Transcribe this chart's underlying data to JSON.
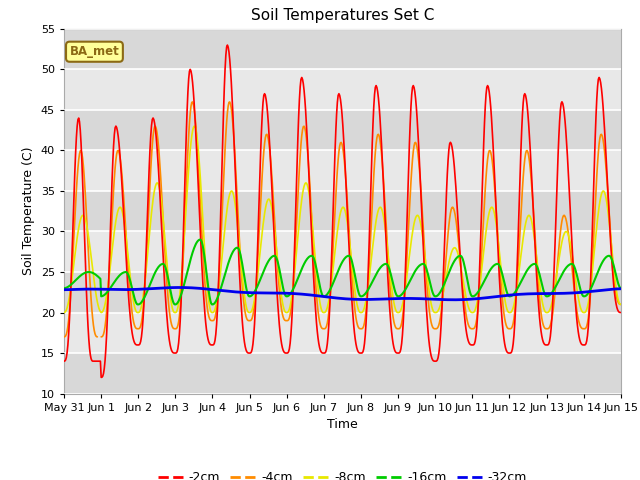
{
  "title": "Soil Temperatures Set C",
  "xlabel": "Time",
  "ylabel": "Soil Temperature (C)",
  "ylim": [
    10,
    55
  ],
  "yticks": [
    10,
    15,
    20,
    25,
    30,
    35,
    40,
    45,
    50,
    55
  ],
  "plot_bg_color": "#e8e8e8",
  "fig_bg_color": "#ffffff",
  "grid_color": "#ffffff",
  "annotation_text": "BA_met",
  "annotation_bg": "#ffff99",
  "annotation_border": "#8b6914",
  "colors": {
    "-2cm": "#ff0000",
    "-4cm": "#ff8c00",
    "-8cm": "#e8e800",
    "-16cm": "#00cc00",
    "-32cm": "#0000ee"
  },
  "x_tick_labels": [
    "May 31",
    "Jun 1",
    "Jun 2",
    "Jun 3",
    "Jun 4",
    "Jun 5",
    "Jun 6",
    "Jun 7",
    "Jun 8",
    "Jun 9",
    "Jun 10",
    "Jun 11",
    "Jun 12",
    "Jun 13",
    "Jun 14",
    "Jun 15"
  ],
  "n_days": 15,
  "samples_per_day": 48
}
